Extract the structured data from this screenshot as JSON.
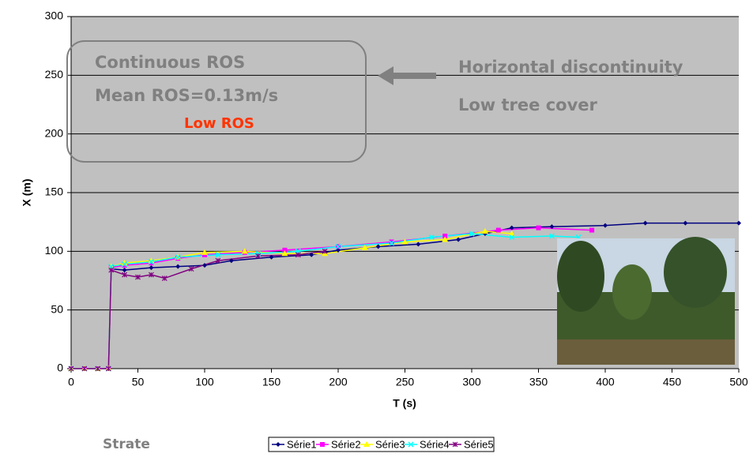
{
  "chart_data": {
    "type": "line",
    "xlabel": "T (s)",
    "ylabel": "X (m)",
    "xlim": [
      0,
      500
    ],
    "xticks": [
      0,
      50,
      100,
      150,
      200,
      250,
      300,
      350,
      400,
      450,
      500
    ],
    "ylim": [
      0,
      300
    ],
    "yticks": [
      0,
      50,
      100,
      150,
      200,
      250,
      300
    ],
    "grid": true,
    "legend": "bottom",
    "series": [
      {
        "name": "Série1",
        "color": "#000080",
        "marker": "diamond",
        "x": [
          0,
          10,
          20,
          28,
          30,
          40,
          60,
          80,
          100,
          120,
          150,
          180,
          200,
          230,
          260,
          290,
          310,
          330,
          360,
          400,
          430,
          460,
          500
        ],
        "values": [
          0,
          0,
          0,
          0,
          85,
          84,
          86,
          87,
          88,
          92,
          95,
          97,
          101,
          104,
          106,
          110,
          115,
          120,
          121,
          122,
          124,
          124,
          124
        ]
      },
      {
        "name": "Série2",
        "color": "#ff00ff",
        "marker": "square",
        "x": [
          0,
          10,
          20,
          28,
          30,
          40,
          60,
          80,
          100,
          130,
          160,
          200,
          240,
          280,
          320,
          350,
          390
        ],
        "values": [
          0,
          0,
          0,
          0,
          86,
          88,
          90,
          94,
          97,
          99,
          101,
          104,
          108,
          113,
          118,
          120,
          118
        ]
      },
      {
        "name": "Série3",
        "color": "#ffff00",
        "marker": "triangle",
        "x": [
          0,
          10,
          20,
          28,
          30,
          40,
          60,
          80,
          100,
          130,
          160,
          190,
          220,
          250,
          280,
          310,
          330
        ],
        "values": [
          0,
          0,
          0,
          0,
          87,
          90,
          92,
          95,
          99,
          100,
          98,
          98,
          103,
          108,
          110,
          117,
          115
        ]
      },
      {
        "name": "Série4",
        "color": "#00ffff",
        "marker": "cross",
        "x": [
          0,
          10,
          20,
          28,
          30,
          40,
          60,
          80,
          110,
          140,
          170,
          200,
          240,
          270,
          300,
          330,
          360,
          380
        ],
        "values": [
          0,
          0,
          0,
          0,
          87,
          89,
          91,
          95,
          97,
          98,
          100,
          104,
          107,
          112,
          115,
          112,
          113,
          112
        ]
      },
      {
        "name": "Série5",
        "color": "#800080",
        "marker": "star",
        "x": [
          0,
          10,
          20,
          28,
          30,
          40,
          50,
          60,
          70,
          90,
          110,
          140,
          170,
          190
        ],
        "values": [
          0,
          0,
          0,
          0,
          84,
          80,
          78,
          80,
          77,
          85,
          92,
          96,
          97,
          100
        ]
      }
    ],
    "annotations": {
      "box_line1": "Continuous ROS",
      "box_line2": "Mean ROS=0.13m/s",
      "box_line3": "Low ROS",
      "right_line1": "Horizontal discontinuity",
      "right_line2": "Low tree cover",
      "bottom_left": "Strate"
    }
  }
}
